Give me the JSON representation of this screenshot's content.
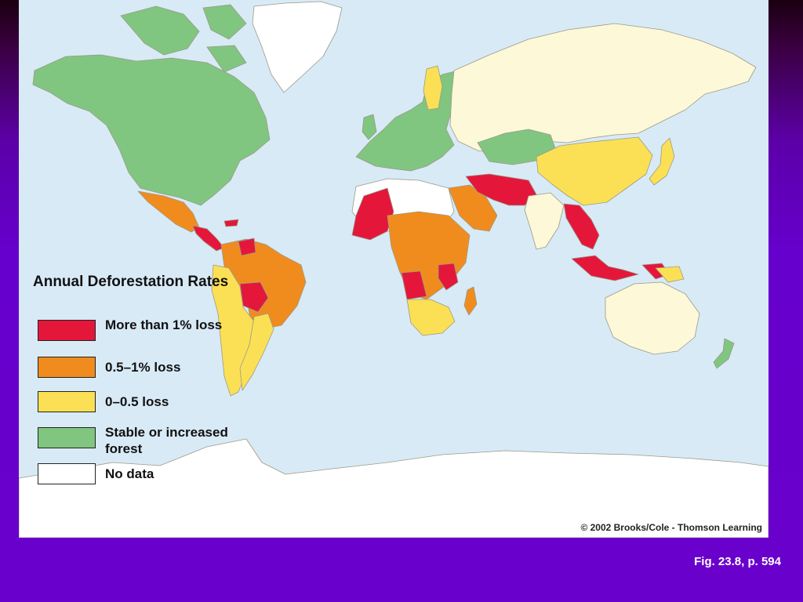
{
  "legend": {
    "title": "Annual Deforestation Rates",
    "items": [
      {
        "label": "More than 1% loss",
        "color": "#e4173b"
      },
      {
        "label": "0.5–1% loss",
        "color": "#f08c1e"
      },
      {
        "label": "0–0.5 loss",
        "color": "#fbe055"
      },
      {
        "label": "Stable or increased forest",
        "color": "#80c680"
      },
      {
        "label": "No data",
        "color": "#ffffff"
      }
    ]
  },
  "colors": {
    "ocean": "#d8eaf6",
    "land_other": "#fdf8d8",
    "ice": "#ffffff",
    "border": "#9a9a88",
    "background": "#6600cc"
  },
  "credit": "© 2002 Brooks/Cole - Thomson Learning",
  "caption": "Fig. 23.8, p. 594"
}
